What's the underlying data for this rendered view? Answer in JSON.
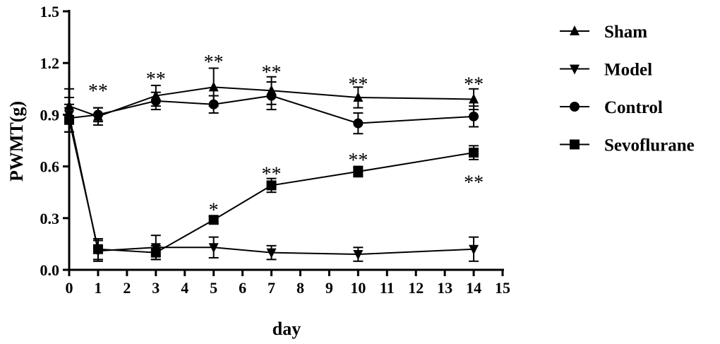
{
  "chart_data": {
    "type": "line",
    "title": "",
    "xlabel": "day",
    "ylabel": "PWMT(g)",
    "xlim": [
      0,
      15
    ],
    "ylim": [
      0,
      1.5
    ],
    "xticks": [
      "0",
      "1",
      "2",
      "3",
      "4",
      "5",
      "6",
      "7",
      "8",
      "9",
      "10",
      "11",
      "12",
      "13",
      "14",
      "15"
    ],
    "yticks": [
      "0.0",
      "0.3",
      "0.6",
      "0.9",
      "1.2",
      "1.5"
    ],
    "grid": false,
    "legend_position": "right",
    "series": [
      {
        "name": "Sham",
        "marker": "triangle-up",
        "x": [
          0,
          1,
          3,
          5,
          7,
          10,
          14
        ],
        "y": [
          0.95,
          0.89,
          1.01,
          1.06,
          1.04,
          1.0,
          0.99
        ],
        "err": [
          0.1,
          0.05,
          0.06,
          0.11,
          0.08,
          0.06,
          0.06
        ]
      },
      {
        "name": "Model",
        "marker": "triangle-down",
        "x": [
          0,
          1,
          3,
          5,
          7,
          10,
          14
        ],
        "y": [
          0.9,
          0.11,
          0.13,
          0.13,
          0.1,
          0.09,
          0.12
        ],
        "err": [
          0.1,
          0.06,
          0.07,
          0.06,
          0.04,
          0.04,
          0.07
        ]
      },
      {
        "name": "Control",
        "marker": "circle",
        "x": [
          0,
          1,
          3,
          5,
          7,
          10,
          14
        ],
        "y": [
          0.88,
          0.9,
          0.98,
          0.96,
          1.01,
          0.85,
          0.89
        ],
        "err": [
          0.08,
          0.04,
          0.05,
          0.05,
          0.08,
          0.06,
          0.06
        ]
      },
      {
        "name": "Sevoflurane",
        "marker": "square",
        "x": [
          0,
          1,
          3,
          5,
          7,
          10,
          14
        ],
        "y": [
          0.87,
          0.12,
          0.1,
          0.29,
          0.49,
          0.57,
          0.68
        ],
        "err": [
          0.07,
          0.06,
          0.04,
          0.02,
          0.04,
          0.03,
          0.04
        ]
      }
    ],
    "annotations": [
      {
        "text": "**",
        "x": 1,
        "y": 1.04
      },
      {
        "text": "**",
        "x": 3,
        "y": 1.11
      },
      {
        "text": "**",
        "x": 5,
        "y": 1.21
      },
      {
        "text": "**",
        "x": 7,
        "y": 1.15
      },
      {
        "text": "**",
        "x": 10,
        "y": 1.08
      },
      {
        "text": "**",
        "x": 14,
        "y": 1.08
      },
      {
        "text": "*",
        "x": 5,
        "y": 0.35
      },
      {
        "text": "**",
        "x": 7,
        "y": 0.56
      },
      {
        "text": "**",
        "x": 10,
        "y": 0.64
      },
      {
        "text": "**",
        "x": 14,
        "y": 0.51
      }
    ]
  }
}
